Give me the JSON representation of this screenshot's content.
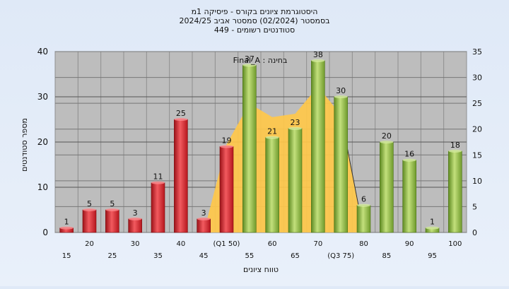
{
  "chart_data": {
    "type": "bar",
    "title_lines": [
      "היסטוגרמת ציונים בקורס - פיסיקה 1מ",
      "בסמסטר  (02/2024)  סמסטר אביב 2024/25",
      "סטודנטים רשומים - 449"
    ],
    "annotation": "Final_A : בחינה",
    "xlabel": "טווח ציונים",
    "ylabel": "מספר סטודנטים",
    "ylim": [
      0,
      40
    ],
    "y2lim": [
      0,
      35
    ],
    "y_ticks": [
      0,
      10,
      20,
      30,
      40
    ],
    "y2_ticks": [
      0,
      5,
      10,
      15,
      20,
      25,
      30,
      35
    ],
    "categories": [
      "15",
      "20",
      "25",
      "30",
      "35",
      "40",
      "45",
      "50",
      "55",
      "60",
      "65",
      "70",
      "75",
      "80",
      "85",
      "90",
      "95",
      "100"
    ],
    "x_labels": [
      "15",
      "20",
      "25",
      "30",
      "35",
      "40",
      "45",
      "(Q1 50)",
      "55",
      "60",
      "65",
      "70",
      "(Q3 75)",
      "80",
      "85",
      "90",
      "95",
      "100"
    ],
    "values": [
      1,
      5,
      5,
      3,
      11,
      25,
      3,
      19,
      37,
      21,
      23,
      38,
      30,
      6,
      20,
      16,
      1,
      18
    ],
    "bar_colors": [
      "red",
      "red",
      "red",
      "red",
      "red",
      "red",
      "red",
      "red",
      "green",
      "green",
      "green",
      "green",
      "green",
      "green",
      "green",
      "green",
      "green",
      "green"
    ],
    "quartile_band": {
      "x_from": "45",
      "x_to": "80",
      "q1_label": "Q1 50",
      "q3_label": "Q3 75"
    },
    "colors": {
      "red": "#e8333a",
      "green": "#95c24a",
      "band": "#ffc84a",
      "plot_bg": "#bdbdbd"
    },
    "grid": true
  }
}
